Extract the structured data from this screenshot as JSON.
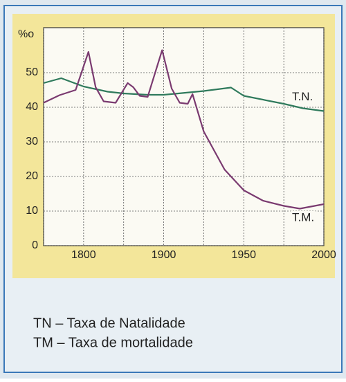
{
  "chart_data": {
    "type": "line",
    "y_label": "%o",
    "xlim": [
      1750,
      2000
    ],
    "xticks": [
      {
        "value": 1750,
        "label": null
      },
      1800,
      {
        "value": 1850,
        "label": null
      },
      1900,
      {
        "value": 1925,
        "label": null
      },
      1950,
      {
        "value": 1975,
        "label": null
      },
      2000
    ],
    "x_scale": "equal-spaced-ticks",
    "ylim": [
      0,
      63
    ],
    "yticks": [
      0,
      10,
      20,
      30,
      40,
      50
    ],
    "grid": true,
    "series": [
      {
        "name": "T.N.",
        "color": "#2f7a5c",
        "x": [
          1750,
          1772,
          1800,
          1830,
          1850,
          1880,
          1900,
          1925,
          1942,
          1950,
          1975,
          1987,
          2000
        ],
        "values": [
          47,
          48.4,
          46,
          44.5,
          44,
          43.6,
          43.6,
          44.7,
          45.7,
          43.3,
          41,
          39.7,
          38.9
        ]
      },
      {
        "name": "T.M.",
        "color": "#7a3a70",
        "x": [
          1750,
          1770,
          1790,
          1806,
          1815,
          1825,
          1840,
          1855,
          1862,
          1870,
          1880,
          1898,
          1905,
          1910,
          1915,
          1918,
          1925,
          1938,
          1950,
          1962,
          1975,
          1985,
          2000
        ],
        "values": [
          41.3,
          43.5,
          45,
          56,
          45.8,
          41.7,
          41.3,
          47,
          45.8,
          43.3,
          43,
          56.5,
          45.4,
          41.3,
          41,
          43.8,
          33,
          22,
          16,
          13,
          11.5,
          10.7,
          12
        ]
      }
    ],
    "notes": [
      "TN – Taxa de Natalidade",
      "TM – Taxa de mortalidade"
    ]
  }
}
